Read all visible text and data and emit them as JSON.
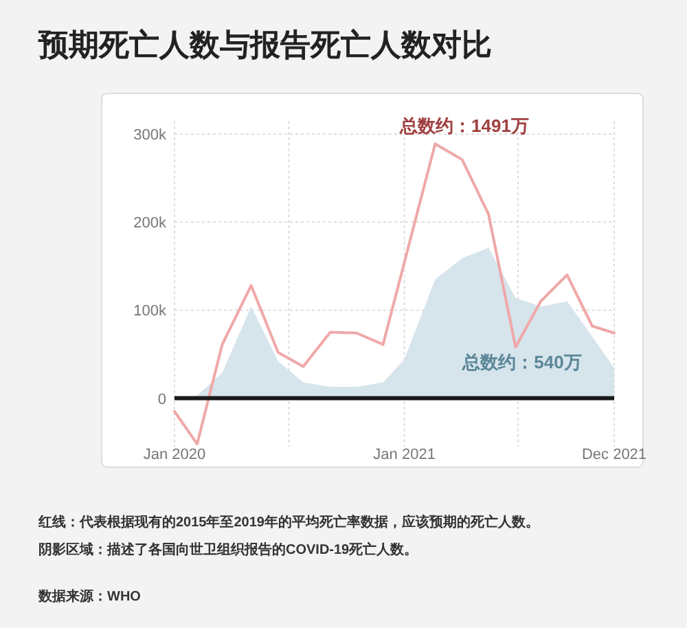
{
  "chart_data": {
    "type": "line",
    "title": "预期死亡人数与报告死亡人数对比",
    "series": [
      {
        "type": "area",
        "color": "#d6e4ec",
        "x": [
          "2020-01-01",
          "2020-02-06",
          "2020-03-17",
          "2020-05-02",
          "2020-06-14",
          "2020-07-24",
          "2020-09-05",
          "2020-10-17",
          "2020-11-28",
          "2021-01-01",
          "2021-02-19",
          "2021-04-03",
          "2021-05-15",
          "2021-06-27",
          "2021-08-06",
          "2021-09-17",
          "2021-10-27",
          "2021-12-01"
        ],
        "values": [
          0,
          3000,
          29000,
          104000,
          42000,
          18000,
          13000,
          13000,
          18000,
          44000,
          135000,
          159000,
          171000,
          114000,
          104000,
          110000,
          70000,
          34000
        ]
      },
      {
        "color": "#f0a8a8",
        "x": [
          "2020-01-01",
          "2020-02-06",
          "2020-03-17",
          "2020-05-02",
          "2020-06-14",
          "2020-07-24",
          "2020-09-05",
          "2020-10-17",
          "2020-11-28",
          "2021-02-19",
          "2021-04-03",
          "2021-05-15",
          "2021-06-27",
          "2021-08-06",
          "2021-09-17",
          "2021-10-27",
          "2021-12-01"
        ],
        "values": [
          -15000,
          -52000,
          61000,
          128000,
          52000,
          36000,
          75000,
          74000,
          61000,
          289000,
          271000,
          209000,
          58000,
          110000,
          140000,
          82000,
          74000
        ]
      }
    ],
    "xlim": [
      "2020-01-01",
      "2021-12-01"
    ],
    "xticks": [
      {
        "value": "2020-01-01",
        "label": "Jan 2020"
      },
      {
        "value": "2020-07-01",
        "label": null
      },
      {
        "value": "2021-01-01",
        "label": "Jan 2021"
      },
      {
        "value": "2021-07-01",
        "label": null
      },
      {
        "value": "2021-12-01",
        "label": "Dec 2021"
      }
    ],
    "ylim": [
      -55000,
      315000
    ],
    "yticks": [
      {
        "value": 0,
        "label": "0"
      },
      {
        "value": 100000,
        "label": "100k"
      },
      {
        "value": 200000,
        "label": "200k"
      },
      {
        "value": 300000,
        "label": "300k"
      }
    ],
    "grid": true,
    "ref_lines": [
      {
        "axis": "y",
        "value": 0,
        "color": "#1a1a1a"
      }
    ],
    "annotations": [
      "总数约：1491万",
      "总数约：540万",
      "红线：代表根据现有的2015年至2019年的平均死亡率数据，应该预期的死亡人数。",
      "阴影区域：描述了各国向世卫组织报告的COVID-19死亡人数。",
      "数据来源：WHO"
    ]
  }
}
